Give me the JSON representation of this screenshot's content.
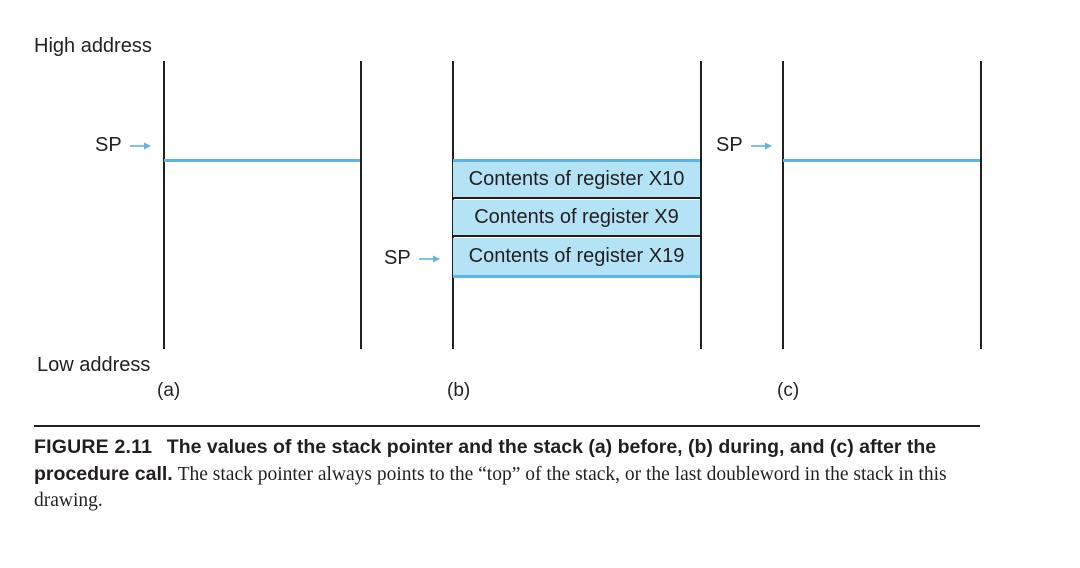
{
  "diagram": {
    "high_address": "High address",
    "low_address": "Low address",
    "sp_label": "SP",
    "panels": [
      {
        "label": "(a)"
      },
      {
        "label": "(b)",
        "cells": [
          "Contents of register X10",
          "Contents of register X9",
          "Contents of register X19"
        ]
      },
      {
        "label": "(c)"
      }
    ],
    "colors": {
      "stack_fill": "#b4e3f5",
      "pointer_line": "#5bb5e6",
      "ink": "#231f20"
    }
  },
  "caption": {
    "figure_number": "FIGURE 2.11",
    "title": "The values of the stack pointer and the stack (a) before, (b) during, and (c) after the procedure call.",
    "body": "The stack pointer always points to the “top” of the stack, or the last doubleword in the stack in this drawing."
  }
}
